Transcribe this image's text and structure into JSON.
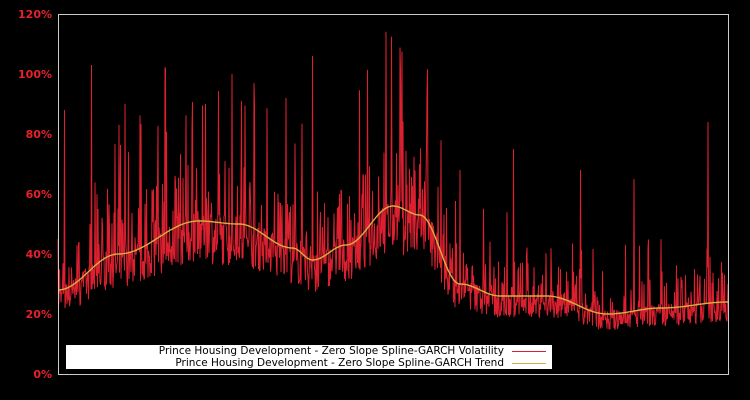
{
  "colors": {
    "background": "#000000",
    "frame": "#cccccc",
    "volatility": "#dd2030",
    "trend": "#d4b040",
    "tick_label": "#e8202a",
    "legend_bg": "#ffffff"
  },
  "chart_data": {
    "type": "line",
    "title": "",
    "xlabel": "",
    "ylabel": "",
    "ylim": [
      0,
      120
    ],
    "y_ticks": [
      "0%",
      "20%",
      "40%",
      "60%",
      "80%",
      "100%",
      "120%"
    ],
    "x_ticks": [],
    "grid": false,
    "legend_position": "lower-left inside",
    "series": [
      {
        "name": "Prince Housing Development - Zero Slope Spline-GARCH Volatility",
        "color": "#dd2030",
        "description": "Noisy daily volatility; baseline ~20-35%, frequent spikes up to ~105%",
        "x": [
          0,
          0.01,
          0.02,
          0.05,
          0.06,
          0.1,
          0.15,
          0.16,
          0.2,
          0.22,
          0.26,
          0.3,
          0.34,
          0.35,
          0.38,
          0.42,
          0.45,
          0.46,
          0.5,
          0.55,
          0.6,
          0.62,
          0.68,
          0.7,
          0.78,
          0.82,
          0.86,
          0.95,
          0.97,
          1.0
        ],
        "values": [
          45,
          88,
          22,
          103,
          55,
          90,
          35,
          102,
          45,
          90,
          50,
          40,
          92,
          30,
          106,
          60,
          75,
          35,
          27,
          75,
          68,
          25,
          75,
          22,
          68,
          20,
          65,
          35,
          84,
          30
        ]
      },
      {
        "name": "Prince Housing Development - Zero Slope Spline-GARCH Trend",
        "color": "#d4b040",
        "x": [
          0,
          0.09,
          0.21,
          0.27,
          0.35,
          0.38,
          0.43,
          0.5,
          0.54,
          0.6,
          0.66,
          0.73,
          0.82,
          0.9,
          1.0
        ],
        "values": [
          28,
          40,
          51,
          50,
          42,
          38,
          43,
          56,
          53,
          30,
          26,
          26,
          20,
          22,
          24
        ]
      }
    ]
  },
  "legend": {
    "items": [
      {
        "label": "Prince Housing Development - Zero Slope Spline-GARCH Volatility",
        "color": "#dd2030"
      },
      {
        "label": "Prince Housing Development - Zero Slope Spline-GARCH Trend",
        "color": "#d4b040"
      }
    ]
  }
}
